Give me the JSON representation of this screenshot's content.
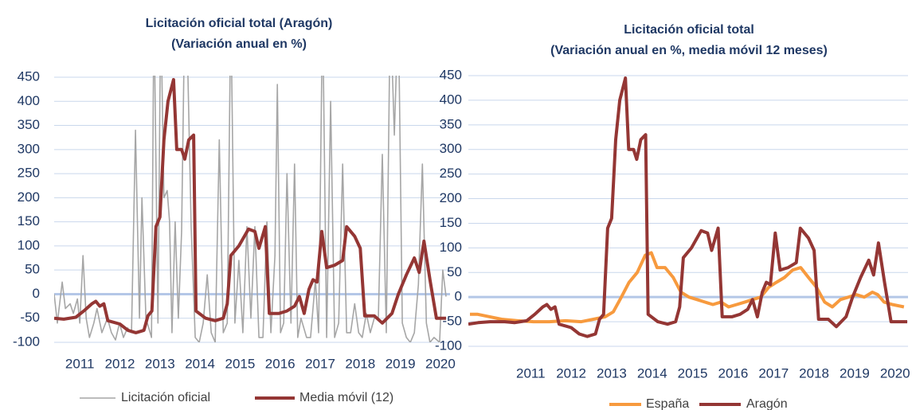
{
  "chart_data": [
    {
      "type": "line",
      "title": "Licitación oficial total  (Aragón)",
      "subtitle": "(Variación anual en %)",
      "xlim": [
        2010.86,
        2020.74
      ],
      "ylim": [
        -100,
        450
      ],
      "yticks": [
        -100,
        -50,
        0,
        50,
        100,
        150,
        200,
        250,
        300,
        350,
        400,
        450
      ],
      "xticks": [
        {
          "value": 2011.5,
          "label": "2011"
        },
        {
          "value": 2012.5,
          "label": "2012"
        },
        {
          "value": 2013.5,
          "label": "2013"
        },
        {
          "value": 2014.5,
          "label": "2014"
        },
        {
          "value": 2015.5,
          "label": "2015"
        },
        {
          "value": 2016.5,
          "label": "2016"
        },
        {
          "value": 2017.5,
          "label": "2017"
        },
        {
          "value": 2018.5,
          "label": "2018"
        },
        {
          "value": 2019.5,
          "label": "2019"
        },
        {
          "value": 2020.5,
          "label": "2020"
        }
      ],
      "grid": true,
      "legend": "bottom",
      "series": [
        {
          "name": "Licitación oficial",
          "color": "#a6a6a6",
          "x": [
            2010.86,
            2010.94,
            2011.06,
            2011.14,
            2011.26,
            2011.34,
            2011.44,
            2011.5,
            2011.58,
            2011.66,
            2011.74,
            2011.85,
            2011.93,
            2012.05,
            2012.19,
            2012.29,
            2012.39,
            2012.49,
            2012.59,
            2012.69,
            2012.79,
            2012.89,
            2012.99,
            2013.05,
            2013.15,
            2013.29,
            2013.35,
            2013.45,
            2013.52,
            2013.6,
            2013.68,
            2013.74,
            2013.8,
            2013.88,
            2013.96,
            2014.04,
            2014.12,
            2014.2,
            2014.28,
            2014.38,
            2014.48,
            2014.58,
            2014.68,
            2014.78,
            2014.88,
            2014.98,
            2015.08,
            2015.18,
            2015.27,
            2015.37,
            2015.47,
            2015.57,
            2015.67,
            2015.77,
            2015.87,
            2015.97,
            2016.07,
            2016.17,
            2016.27,
            2016.37,
            2016.43,
            2016.51,
            2016.59,
            2016.67,
            2016.77,
            2016.86,
            2016.94,
            2017.02,
            2017.16,
            2017.26,
            2017.38,
            2017.46,
            2017.56,
            2017.66,
            2017.76,
            2017.86,
            2017.96,
            2018.06,
            2018.16,
            2018.26,
            2018.36,
            2018.46,
            2018.55,
            2018.65,
            2018.75,
            2018.85,
            2018.95,
            2019.05,
            2019.15,
            2019.25,
            2019.35,
            2019.45,
            2019.55,
            2019.65,
            2019.75,
            2019.85,
            2019.95,
            2020.05,
            2020.15,
            2020.24,
            2020.34,
            2020.48,
            2020.56,
            2020.64
          ],
          "values": [
            0,
            -60,
            25,
            -30,
            -20,
            -40,
            -10,
            -60,
            80,
            -50,
            -90,
            -60,
            -30,
            -80,
            -50,
            -80,
            -95,
            -60,
            -90,
            -70,
            -80,
            340,
            -50,
            200,
            -50,
            -90,
            600,
            -60,
            600,
            200,
            215,
            150,
            -80,
            150,
            -50,
            130,
            600,
            450,
            140,
            -90,
            -100,
            -60,
            40,
            -80,
            -100,
            320,
            -80,
            -60,
            600,
            -60,
            70,
            -80,
            140,
            -50,
            140,
            -90,
            -90,
            150,
            -80,
            80,
            435,
            -80,
            -60,
            250,
            -60,
            270,
            -90,
            -50,
            -90,
            -90,
            30,
            -80,
            600,
            -90,
            400,
            -90,
            -60,
            270,
            -80,
            -80,
            -20,
            -80,
            -90,
            -40,
            -80,
            -50,
            -50,
            290,
            -80,
            600,
            330,
            600,
            -60,
            -90,
            -100,
            -80,
            20,
            270,
            -60,
            -100,
            -90,
            -100,
            50,
            -5
          ]
        },
        {
          "name": "Media móvil (12)",
          "color": "#943634",
          "x": [
            2010.86,
            2011.1,
            2011.4,
            2011.6,
            2011.8,
            2011.9,
            2012.0,
            2012.1,
            2012.2,
            2012.5,
            2012.7,
            2012.9,
            2013.1,
            2013.2,
            2013.3,
            2013.4,
            2013.5,
            2013.6,
            2013.7,
            2013.84,
            2013.92,
            2014.04,
            2014.12,
            2014.22,
            2014.34,
            2014.4,
            2014.64,
            2014.88,
            2015.08,
            2015.18,
            2015.27,
            2015.47,
            2015.71,
            2015.87,
            2015.97,
            2016.13,
            2016.23,
            2016.47,
            2016.67,
            2016.86,
            2016.98,
            2017.1,
            2017.22,
            2017.32,
            2017.42,
            2017.54,
            2017.66,
            2017.86,
            2018.06,
            2018.16,
            2018.36,
            2018.5,
            2018.61,
            2018.85,
            2019.05,
            2019.29,
            2019.45,
            2019.65,
            2019.85,
            2019.97,
            2020.09,
            2020.24,
            2020.4,
            2020.64
          ],
          "values": [
            -50,
            -52,
            -48,
            -35,
            -20,
            -15,
            -25,
            -20,
            -55,
            -62,
            -75,
            -80,
            -75,
            -45,
            -35,
            140,
            160,
            320,
            400,
            445,
            300,
            300,
            280,
            320,
            330,
            -35,
            -50,
            -55,
            -50,
            -20,
            80,
            100,
            135,
            130,
            95,
            140,
            -40,
            -40,
            -35,
            -25,
            -5,
            -40,
            10,
            30,
            25,
            130,
            55,
            60,
            70,
            140,
            120,
            95,
            -45,
            -45,
            -60,
            -40,
            0,
            40,
            75,
            45,
            110,
            30,
            -50,
            -50
          ]
        }
      ]
    },
    {
      "type": "line",
      "title": "Licitación oficial total",
      "subtitle": "(Variación anual en %, media móvil 12 meses)",
      "xlim": [
        2009.96,
        2020.82
      ],
      "ylim": [
        -100,
        450
      ],
      "yticks": [
        -100,
        -50,
        0,
        50,
        100,
        150,
        200,
        250,
        300,
        350,
        400,
        450
      ],
      "xticks": [
        {
          "value": 2011.5,
          "label": "2011"
        },
        {
          "value": 2012.5,
          "label": "2012"
        },
        {
          "value": 2013.5,
          "label": "2013"
        },
        {
          "value": 2014.5,
          "label": "2014"
        },
        {
          "value": 2015.5,
          "label": "2015"
        },
        {
          "value": 2016.5,
          "label": "2016"
        },
        {
          "value": 2017.5,
          "label": "2017"
        },
        {
          "value": 2018.5,
          "label": "2018"
        },
        {
          "value": 2019.5,
          "label": "2019"
        },
        {
          "value": 2020.5,
          "label": "2020"
        }
      ],
      "grid": true,
      "legend": "bottom",
      "series": [
        {
          "name": "España",
          "color": "#f79a3e",
          "x": [
            2010.0,
            2010.19,
            2010.49,
            2010.78,
            2011.18,
            2011.57,
            2011.96,
            2012.36,
            2012.75,
            2013.05,
            2013.34,
            2013.54,
            2013.74,
            2013.93,
            2014.13,
            2014.33,
            2014.48,
            2014.62,
            2014.82,
            2015.02,
            2015.21,
            2015.41,
            2015.61,
            2015.8,
            2016.0,
            2016.2,
            2016.39,
            2016.59,
            2016.79,
            2016.98,
            2017.18,
            2017.38,
            2017.57,
            2017.77,
            2017.97,
            2018.17,
            2018.36,
            2018.56,
            2018.76,
            2018.95,
            2019.15,
            2019.35,
            2019.54,
            2019.74,
            2019.94,
            2020.07,
            2020.23,
            2020.43,
            2020.72
          ],
          "values": [
            -35,
            -35,
            -40,
            -45,
            -48,
            -50,
            -50,
            -48,
            -50,
            -45,
            -40,
            -30,
            0,
            30,
            50,
            85,
            90,
            60,
            60,
            40,
            10,
            0,
            -5,
            -10,
            -15,
            -10,
            -20,
            -15,
            -10,
            -5,
            0,
            20,
            30,
            40,
            55,
            60,
            40,
            20,
            -10,
            -20,
            -5,
            0,
            5,
            0,
            10,
            5,
            -10,
            -15,
            -20
          ]
        },
        {
          "name": "Aragón",
          "color": "#943634",
          "x": [
            2009.96,
            2010.2,
            2010.5,
            2010.86,
            2011.1,
            2011.4,
            2011.6,
            2011.8,
            2011.9,
            2012.0,
            2012.1,
            2012.2,
            2012.5,
            2012.7,
            2012.9,
            2013.1,
            2013.2,
            2013.3,
            2013.4,
            2013.5,
            2013.6,
            2013.7,
            2013.84,
            2013.92,
            2014.04,
            2014.12,
            2014.22,
            2014.34,
            2014.4,
            2014.64,
            2014.88,
            2015.08,
            2015.18,
            2015.27,
            2015.47,
            2015.71,
            2015.87,
            2015.97,
            2016.13,
            2016.23,
            2016.47,
            2016.67,
            2016.86,
            2016.98,
            2017.1,
            2017.22,
            2017.32,
            2017.42,
            2017.54,
            2017.66,
            2017.86,
            2018.06,
            2018.16,
            2018.36,
            2018.5,
            2018.61,
            2018.85,
            2019.05,
            2019.29,
            2019.45,
            2019.65,
            2019.85,
            2019.97,
            2020.09,
            2020.24,
            2020.4,
            2020.8
          ],
          "values": [
            -55,
            -52,
            -50,
            -50,
            -52,
            -48,
            -35,
            -20,
            -15,
            -25,
            -20,
            -55,
            -62,
            -75,
            -80,
            -75,
            -45,
            -35,
            140,
            160,
            320,
            400,
            445,
            300,
            300,
            280,
            320,
            330,
            -35,
            -50,
            -55,
            -50,
            -20,
            80,
            100,
            135,
            130,
            95,
            140,
            -40,
            -40,
            -35,
            -25,
            -5,
            -40,
            10,
            30,
            25,
            130,
            55,
            60,
            70,
            140,
            120,
            95,
            -45,
            -45,
            -60,
            -40,
            0,
            40,
            75,
            45,
            110,
            30,
            -50,
            -50
          ]
        }
      ]
    }
  ]
}
